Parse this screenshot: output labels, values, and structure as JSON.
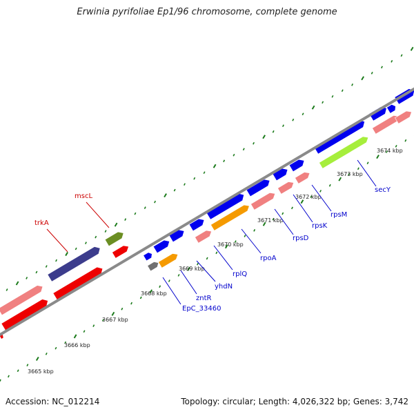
{
  "title": "Erwinia pyrifoliae Ep1/96 chromosome, complete genome",
  "footer": {
    "accession": "Accession: NC_012214",
    "summary": "Topology: circular; Length: 4,026,322 bp; Genes: 3,742"
  },
  "colors": {
    "backbone": "#8a8a8a",
    "tick": "#1a7a1a",
    "cds_forward": "#0000ee",
    "cds_reverse": "#ee0000",
    "rna_pink": "#f08080",
    "orange": "#f59a00",
    "olive": "#6b8e23",
    "navy": "#3c3c8c",
    "gray": "#707070",
    "lime": "#a6ee3c",
    "label_blue": "#0000cc",
    "label_red": "#cc0000"
  },
  "kbp_labels": [
    "3665 kbp",
    "3666 kbp",
    "3667 kbp",
    "3668 kbp",
    "3669 kbp",
    "3670 kbp",
    "3671 kbp",
    "3672 kbp",
    "3673 kbp",
    "3674 kbp"
  ],
  "gene_labels": [
    {
      "text": "mscL",
      "color": "red"
    },
    {
      "text": "trkA",
      "color": "red"
    },
    {
      "text": "EpC_33460",
      "color": "blue"
    },
    {
      "text": "zntR",
      "color": "blue"
    },
    {
      "text": "yhdN",
      "color": "blue"
    },
    {
      "text": "rplQ",
      "color": "blue"
    },
    {
      "text": "rpoA",
      "color": "blue"
    },
    {
      "text": "rpsD",
      "color": "blue"
    },
    {
      "text": "rpsK",
      "color": "blue"
    },
    {
      "text": "rpsM",
      "color": "blue"
    },
    {
      "text": "secY",
      "color": "blue"
    }
  ]
}
